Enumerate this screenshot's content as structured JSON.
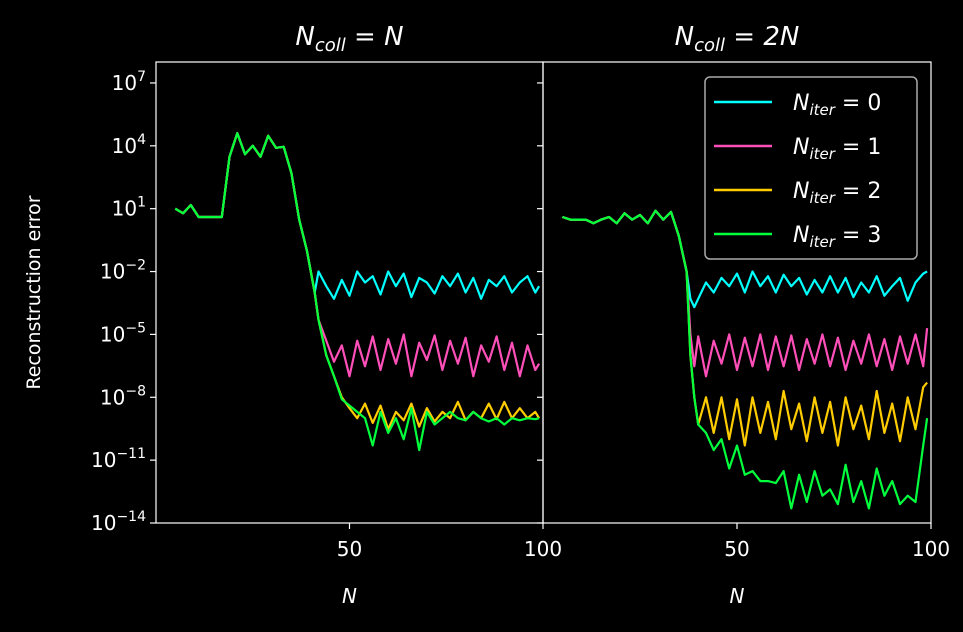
{
  "chart_data": [
    {
      "type": "line",
      "title": "N_coll = N",
      "title_parts": {
        "base": "N",
        "sub": "coll",
        "rhs": "N"
      },
      "xlabel": "N",
      "ylabel": "Reconstruction error",
      "xlim": [
        0,
        100
      ],
      "ylim": [
        1e-14,
        100000000.0
      ],
      "yscale": "log",
      "xticks": [
        50,
        100
      ],
      "yticks_exp": [
        7,
        4,
        1,
        -2,
        -5,
        -8,
        -11,
        -14
      ],
      "series": [
        {
          "name": "N_iter = 0",
          "color": "#00ffff",
          "x": [
            5,
            7,
            9,
            11,
            13,
            15,
            17,
            19,
            21,
            23,
            25,
            27,
            29,
            31,
            33,
            35,
            37,
            39,
            41,
            42,
            44,
            46,
            48,
            50,
            52,
            54,
            56,
            58,
            60,
            62,
            64,
            66,
            68,
            70,
            72,
            74,
            76,
            78,
            80,
            82,
            84,
            86,
            88,
            90,
            92,
            94,
            96,
            98,
            99
          ],
          "y": [
            10,
            6,
            15,
            4,
            4,
            4,
            4,
            3000,
            40000,
            4000,
            10000,
            3000,
            30000,
            8000,
            9000,
            500,
            3,
            0.1,
            0.001,
            0.01,
            0.002,
            0.0005,
            0.004,
            0.0007,
            0.01,
            0.003,
            0.006,
            0.0008,
            0.01,
            0.002,
            0.008,
            0.0006,
            0.005,
            0.003,
            0.0009,
            0.006,
            0.002,
            0.008,
            0.001,
            0.005,
            0.0005,
            0.004,
            0.002,
            0.006,
            0.001,
            0.003,
            0.006,
            0.001,
            0.002
          ]
        },
        {
          "name": "N_iter = 1",
          "color": "#ff4fb8",
          "x": [
            5,
            7,
            9,
            11,
            13,
            15,
            17,
            19,
            21,
            23,
            25,
            27,
            29,
            31,
            33,
            35,
            37,
            39,
            41,
            42,
            44,
            46,
            48,
            50,
            52,
            54,
            56,
            58,
            60,
            62,
            64,
            66,
            68,
            70,
            72,
            74,
            76,
            78,
            80,
            82,
            84,
            86,
            88,
            90,
            92,
            94,
            96,
            98,
            99
          ],
          "y": [
            10,
            6,
            15,
            4,
            4,
            4,
            4,
            3000,
            40000,
            4000,
            10000,
            3000,
            30000,
            8000,
            9000,
            500,
            3,
            0.1,
            0.001,
            5e-05,
            5e-06,
            5e-07,
            3e-06,
            1e-07,
            5e-06,
            3e-07,
            8e-06,
            2e-07,
            6e-06,
            4e-07,
            1e-05,
            1e-07,
            4e-06,
            6e-07,
            9e-06,
            2e-07,
            5e-06,
            4e-07,
            7e-06,
            1e-07,
            3e-06,
            5e-07,
            8e-06,
            2e-07,
            4e-06,
            1e-07,
            3e-06,
            2e-07,
            4e-07
          ]
        },
        {
          "name": "N_iter = 2",
          "color": "#ffcc00",
          "x": [
            5,
            7,
            9,
            11,
            13,
            15,
            17,
            19,
            21,
            23,
            25,
            27,
            29,
            31,
            33,
            35,
            37,
            39,
            41,
            42,
            44,
            46,
            48,
            50,
            52,
            54,
            56,
            58,
            60,
            62,
            64,
            66,
            68,
            70,
            72,
            74,
            76,
            78,
            80,
            82,
            84,
            86,
            88,
            90,
            92,
            94,
            96,
            98,
            99
          ],
          "y": [
            10,
            6,
            15,
            4,
            4,
            4,
            4,
            3000,
            40000,
            4000,
            10000,
            3000,
            30000,
            8000,
            9000,
            500,
            3,
            0.1,
            0.001,
            5e-05,
            1e-06,
            1e-07,
            1e-08,
            3e-09,
            1e-09,
            5e-09,
            6e-10,
            4e-09,
            3e-10,
            2e-09,
            8e-10,
            5e-09,
            4e-10,
            3e-09,
            7e-10,
            2e-09,
            1e-09,
            6e-09,
            8e-10,
            2e-09,
            1e-09,
            5e-09,
            9e-10,
            6e-09,
            1e-09,
            3e-09,
            1e-09,
            2e-09,
            1e-09
          ]
        },
        {
          "name": "N_iter = 3",
          "color": "#00ff3c",
          "x": [
            5,
            7,
            9,
            11,
            13,
            15,
            17,
            19,
            21,
            23,
            25,
            27,
            29,
            31,
            33,
            35,
            37,
            39,
            41,
            42,
            44,
            46,
            48,
            50,
            52,
            54,
            56,
            58,
            60,
            62,
            64,
            66,
            68,
            70,
            72,
            74,
            76,
            78,
            80,
            82,
            84,
            86,
            88,
            90,
            92,
            94,
            96,
            98,
            99
          ],
          "y": [
            10,
            6,
            15,
            4,
            4,
            4,
            4,
            3000,
            40000,
            4000,
            10000,
            3000,
            30000,
            8000,
            9000,
            500,
            3,
            0.1,
            0.001,
            5e-05,
            1e-06,
            1e-07,
            8e-09,
            4e-09,
            2e-09,
            1e-09,
            5e-11,
            2e-09,
            2e-10,
            1e-09,
            1e-10,
            3e-09,
            3e-11,
            2e-09,
            5e-10,
            1e-09,
            2e-09,
            1e-09,
            8e-10,
            2e-09,
            1e-09,
            7e-10,
            1e-09,
            5e-10,
            1e-09,
            8e-10,
            1e-09,
            9e-10,
            1e-09
          ]
        }
      ]
    },
    {
      "type": "line",
      "title": "N_coll = 2N",
      "title_parts": {
        "base": "N",
        "sub": "coll",
        "rhs": "2N"
      },
      "xlabel": "N",
      "xlim": [
        0,
        100
      ],
      "ylim": [
        1e-14,
        100000000.0
      ],
      "yscale": "log",
      "xticks": [
        50,
        100
      ],
      "legend_placement": "top-right",
      "series": [
        {
          "name": "N_iter = 0",
          "color": "#00ffff",
          "x": [
            5,
            7,
            9,
            11,
            13,
            15,
            17,
            19,
            21,
            23,
            25,
            27,
            29,
            31,
            33,
            35,
            37,
            38,
            39,
            40,
            42,
            44,
            46,
            48,
            50,
            52,
            54,
            56,
            58,
            60,
            62,
            64,
            66,
            68,
            70,
            72,
            74,
            76,
            78,
            80,
            82,
            84,
            86,
            88,
            90,
            92,
            94,
            96,
            98,
            99
          ],
          "y": [
            4,
            3,
            3,
            3,
            2,
            3,
            4,
            2,
            6,
            3,
            5,
            2,
            8,
            3,
            7,
            0.5,
            0.01,
            0.0005,
            0.0002,
            0.0005,
            0.003,
            0.001,
            0.005,
            0.002,
            0.008,
            0.001,
            0.01,
            0.002,
            0.006,
            0.001,
            0.007,
            0.002,
            0.005,
            0.0008,
            0.004,
            0.001,
            0.006,
            0.001,
            0.005,
            0.0006,
            0.003,
            0.001,
            0.006,
            0.0007,
            0.002,
            0.005,
            0.0004,
            0.003,
            0.008,
            0.01
          ]
        },
        {
          "name": "N_iter = 1",
          "color": "#ff4fb8",
          "x": [
            5,
            7,
            9,
            11,
            13,
            15,
            17,
            19,
            21,
            23,
            25,
            27,
            29,
            31,
            33,
            35,
            37,
            38,
            39,
            40,
            42,
            44,
            46,
            48,
            50,
            52,
            54,
            56,
            58,
            60,
            62,
            64,
            66,
            68,
            70,
            72,
            74,
            76,
            78,
            80,
            82,
            84,
            86,
            88,
            90,
            92,
            94,
            96,
            98,
            99
          ],
          "y": [
            4,
            3,
            3,
            3,
            2,
            3,
            4,
            2,
            6,
            3,
            5,
            2,
            8,
            3,
            7,
            0.5,
            0.01,
            1e-05,
            3e-07,
            8e-06,
            1e-07,
            5e-06,
            4e-07,
            1e-05,
            2e-07,
            7e-06,
            3e-07,
            1e-05,
            2e-07,
            8e-06,
            3e-07,
            9e-06,
            2e-07,
            6e-06,
            4e-07,
            1e-05,
            3e-07,
            7e-06,
            2e-07,
            5e-06,
            4e-07,
            1e-05,
            3e-07,
            6e-06,
            2e-07,
            8e-06,
            4e-07,
            1e-05,
            3e-07,
            2e-05
          ]
        },
        {
          "name": "N_iter = 2",
          "color": "#ffcc00",
          "x": [
            5,
            7,
            9,
            11,
            13,
            15,
            17,
            19,
            21,
            23,
            25,
            27,
            29,
            31,
            33,
            35,
            37,
            38,
            39,
            40,
            42,
            44,
            46,
            48,
            50,
            52,
            54,
            56,
            58,
            60,
            62,
            64,
            66,
            68,
            70,
            72,
            74,
            76,
            78,
            80,
            82,
            84,
            86,
            88,
            90,
            92,
            94,
            96,
            98,
            99
          ],
          "y": [
            4,
            3,
            3,
            3,
            2,
            3,
            4,
            2,
            6,
            3,
            5,
            2,
            8,
            3,
            7,
            0.5,
            0.01,
            1e-06,
            1e-08,
            5e-10,
            1e-08,
            2e-10,
            1e-08,
            1e-10,
            8e-09,
            5e-11,
            1e-08,
            2e-10,
            6e-09,
            1e-10,
            2e-08,
            3e-10,
            5e-09,
            8e-11,
            1e-08,
            2e-10,
            6e-09,
            5e-11,
            1e-08,
            3e-10,
            4e-09,
            1e-10,
            2e-08,
            2e-10,
            5e-09,
            8e-11,
            1e-08,
            3e-10,
            3e-08,
            5e-08
          ]
        },
        {
          "name": "N_iter = 3",
          "color": "#00ff3c",
          "x": [
            5,
            7,
            9,
            11,
            13,
            15,
            17,
            19,
            21,
            23,
            25,
            27,
            29,
            31,
            33,
            35,
            37,
            38,
            39,
            40,
            42,
            44,
            46,
            48,
            50,
            52,
            54,
            56,
            58,
            60,
            62,
            64,
            66,
            68,
            70,
            72,
            74,
            76,
            78,
            80,
            82,
            84,
            86,
            88,
            90,
            92,
            94,
            96,
            98,
            99
          ],
          "y": [
            4,
            3,
            3,
            3,
            2,
            3,
            4,
            2,
            6,
            3,
            5,
            2,
            8,
            3,
            7,
            0.5,
            0.01,
            1e-06,
            1e-08,
            5e-10,
            2e-10,
            3e-11,
            1e-10,
            4e-12,
            5e-11,
            2e-12,
            3e-12,
            1e-12,
            1e-12,
            8e-13,
            3e-12,
            5e-14,
            2e-12,
            1e-13,
            3e-12,
            2e-13,
            4e-13,
            8e-14,
            6e-12,
            1e-13,
            1e-12,
            5e-14,
            4e-12,
            2e-13,
            1e-12,
            8e-14,
            2e-13,
            1e-13,
            5e-11,
            1e-09
          ]
        }
      ]
    }
  ]
}
